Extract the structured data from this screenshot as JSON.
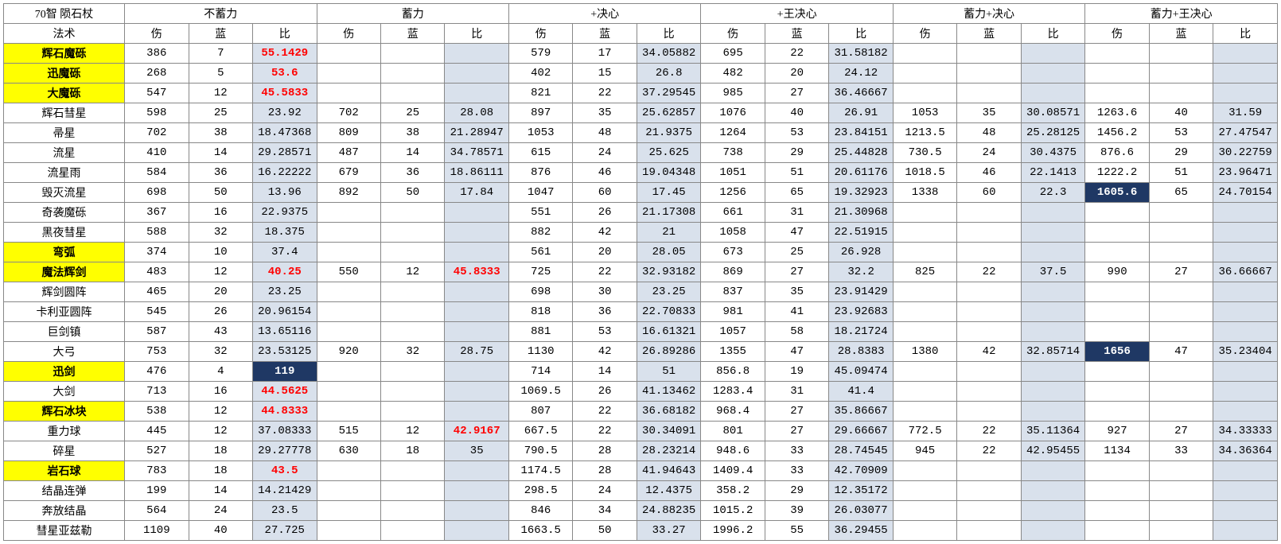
{
  "title": "70智 陨石杖",
  "groups": [
    "不蓄力",
    "蓄力",
    "+决心",
    "+王决心",
    "蓄力+决心",
    "蓄力+王决心"
  ],
  "subheaders": [
    "伤",
    "蓝",
    "比"
  ],
  "spellHeader": "法术",
  "spells": [
    {
      "name": "辉石魔砾",
      "yellow": true,
      "g": [
        {
          "d": 386,
          "m": 7,
          "r": 55.1429,
          "rRed": true
        },
        {
          "d": null,
          "m": null,
          "r": null
        },
        {
          "d": 579,
          "m": 17,
          "r": 34.05882
        },
        {
          "d": 695,
          "m": 22,
          "r": 31.58182
        },
        {
          "d": null,
          "m": null,
          "r": null
        },
        {
          "d": null,
          "m": null,
          "r": null
        }
      ]
    },
    {
      "name": "迅魔砾",
      "yellow": true,
      "g": [
        {
          "d": 268,
          "m": 5,
          "r": 53.6,
          "rRed": true
        },
        {
          "d": null,
          "m": null,
          "r": null
        },
        {
          "d": 402,
          "m": 15,
          "r": 26.8
        },
        {
          "d": 482,
          "m": 20,
          "r": 24.12
        },
        {
          "d": null,
          "m": null,
          "r": null
        },
        {
          "d": null,
          "m": null,
          "r": null
        }
      ]
    },
    {
      "name": "大魔砾",
      "yellow": true,
      "g": [
        {
          "d": 547,
          "m": 12,
          "r": 45.5833,
          "rRed": true
        },
        {
          "d": null,
          "m": null,
          "r": null
        },
        {
          "d": 821,
          "m": 22,
          "r": 37.29545
        },
        {
          "d": 985,
          "m": 27,
          "r": 36.46667
        },
        {
          "d": null,
          "m": null,
          "r": null
        },
        {
          "d": null,
          "m": null,
          "r": null
        }
      ]
    },
    {
      "name": "辉石彗星",
      "g": [
        {
          "d": 598,
          "m": 25,
          "r": 23.92
        },
        {
          "d": 702,
          "m": 25,
          "r": 28.08
        },
        {
          "d": 897,
          "m": 35,
          "r": 25.62857
        },
        {
          "d": 1076,
          "m": 40,
          "r": 26.91
        },
        {
          "d": 1053,
          "m": 35,
          "r": 30.08571
        },
        {
          "d": 1263.6,
          "m": 40,
          "r": 31.59
        }
      ]
    },
    {
      "name": "帚星",
      "g": [
        {
          "d": 702,
          "m": 38,
          "r": 18.47368
        },
        {
          "d": 809,
          "m": 38,
          "r": 21.28947
        },
        {
          "d": 1053,
          "m": 48,
          "r": 21.9375
        },
        {
          "d": 1264,
          "m": 53,
          "r": 23.84151
        },
        {
          "d": 1213.5,
          "m": 48,
          "r": 25.28125
        },
        {
          "d": 1456.2,
          "m": 53,
          "r": 27.47547
        }
      ]
    },
    {
      "name": "流星",
      "g": [
        {
          "d": 410,
          "m": 14,
          "r": 29.28571
        },
        {
          "d": 487,
          "m": 14,
          "r": 34.78571
        },
        {
          "d": 615,
          "m": 24,
          "r": 25.625
        },
        {
          "d": 738,
          "m": 29,
          "r": 25.44828
        },
        {
          "d": 730.5,
          "m": 24,
          "r": 30.4375
        },
        {
          "d": 876.6,
          "m": 29,
          "r": 30.22759
        }
      ]
    },
    {
      "name": "流星雨",
      "g": [
        {
          "d": 584,
          "m": 36,
          "r": 16.22222
        },
        {
          "d": 679,
          "m": 36,
          "r": 18.86111
        },
        {
          "d": 876,
          "m": 46,
          "r": 19.04348
        },
        {
          "d": 1051,
          "m": 51,
          "r": 20.61176
        },
        {
          "d": 1018.5,
          "m": 46,
          "r": 22.1413
        },
        {
          "d": 1222.2,
          "m": 51,
          "r": 23.96471
        }
      ]
    },
    {
      "name": "毁灭流星",
      "g": [
        {
          "d": 698,
          "m": 50,
          "r": 13.96
        },
        {
          "d": 892,
          "m": 50,
          "r": 17.84
        },
        {
          "d": 1047,
          "m": 60,
          "r": 17.45
        },
        {
          "d": 1256,
          "m": 65,
          "r": 19.32923
        },
        {
          "d": 1338,
          "m": 60,
          "r": 22.3
        },
        {
          "d": 1605.6,
          "dNavy": true,
          "m": 65,
          "r": 24.70154
        }
      ]
    },
    {
      "name": "奇袭魔砾",
      "g": [
        {
          "d": 367,
          "m": 16,
          "r": 22.9375
        },
        {
          "d": null,
          "m": null,
          "r": null
        },
        {
          "d": 551,
          "m": 26,
          "r": 21.17308
        },
        {
          "d": 661,
          "m": 31,
          "r": 21.30968
        },
        {
          "d": null,
          "m": null,
          "r": null
        },
        {
          "d": null,
          "m": null,
          "r": null
        }
      ]
    },
    {
      "name": "黑夜彗星",
      "g": [
        {
          "d": 588,
          "m": 32,
          "r": 18.375
        },
        {
          "d": null,
          "m": null,
          "r": null
        },
        {
          "d": 882,
          "m": 42,
          "r": 21
        },
        {
          "d": 1058,
          "m": 47,
          "r": 22.51915
        },
        {
          "d": null,
          "m": null,
          "r": null
        },
        {
          "d": null,
          "m": null,
          "r": null
        }
      ]
    },
    {
      "name": "弯弧",
      "yellow": true,
      "g": [
        {
          "d": 374,
          "m": 10,
          "r": 37.4
        },
        {
          "d": null,
          "m": null,
          "r": null
        },
        {
          "d": 561,
          "m": 20,
          "r": 28.05
        },
        {
          "d": 673,
          "m": 25,
          "r": 26.928
        },
        {
          "d": null,
          "m": null,
          "r": null
        },
        {
          "d": null,
          "m": null,
          "r": null
        }
      ]
    },
    {
      "name": "魔法辉剑",
      "yellow": true,
      "g": [
        {
          "d": 483,
          "m": 12,
          "r": 40.25,
          "rRed": true
        },
        {
          "d": 550,
          "m": 12,
          "r": 45.8333,
          "rRed": true
        },
        {
          "d": 725,
          "m": 22,
          "r": 32.93182
        },
        {
          "d": 869,
          "m": 27,
          "r": 32.2
        },
        {
          "d": 825,
          "m": 22,
          "r": 37.5
        },
        {
          "d": 990,
          "m": 27,
          "r": 36.66667
        }
      ]
    },
    {
      "name": "辉剑圆阵",
      "g": [
        {
          "d": 465,
          "m": 20,
          "r": 23.25
        },
        {
          "d": null,
          "m": null,
          "r": null
        },
        {
          "d": 698,
          "m": 30,
          "r": 23.25
        },
        {
          "d": 837,
          "m": 35,
          "r": 23.91429
        },
        {
          "d": null,
          "m": null,
          "r": null
        },
        {
          "d": null,
          "m": null,
          "r": null
        }
      ]
    },
    {
      "name": "卡利亚圆阵",
      "g": [
        {
          "d": 545,
          "m": 26,
          "r": 20.96154
        },
        {
          "d": null,
          "m": null,
          "r": null
        },
        {
          "d": 818,
          "m": 36,
          "r": 22.70833
        },
        {
          "d": 981,
          "m": 41,
          "r": 23.92683
        },
        {
          "d": null,
          "m": null,
          "r": null
        },
        {
          "d": null,
          "m": null,
          "r": null
        }
      ]
    },
    {
      "name": "巨剑镇",
      "g": [
        {
          "d": 587,
          "m": 43,
          "r": 13.65116
        },
        {
          "d": null,
          "m": null,
          "r": null
        },
        {
          "d": 881,
          "m": 53,
          "r": 16.61321
        },
        {
          "d": 1057,
          "m": 58,
          "r": 18.21724
        },
        {
          "d": null,
          "m": null,
          "r": null
        },
        {
          "d": null,
          "m": null,
          "r": null
        }
      ]
    },
    {
      "name": "大弓",
      "g": [
        {
          "d": 753,
          "m": 32,
          "r": 23.53125
        },
        {
          "d": 920,
          "m": 32,
          "r": 28.75
        },
        {
          "d": 1130,
          "m": 42,
          "r": 26.89286
        },
        {
          "d": 1355,
          "m": 47,
          "r": 28.8383
        },
        {
          "d": 1380,
          "m": 42,
          "r": 32.85714
        },
        {
          "d": 1656,
          "dNavy": true,
          "m": 47,
          "r": 35.23404
        }
      ]
    },
    {
      "name": "迅剑",
      "yellow": true,
      "g": [
        {
          "d": 476,
          "m": 4,
          "r": 119,
          "rNavy": true
        },
        {
          "d": null,
          "m": null,
          "r": null
        },
        {
          "d": 714,
          "m": 14,
          "r": 51
        },
        {
          "d": 856.8,
          "m": 19,
          "r": 45.09474
        },
        {
          "d": null,
          "m": null,
          "r": null
        },
        {
          "d": null,
          "m": null,
          "r": null
        }
      ]
    },
    {
      "name": "大剑",
      "g": [
        {
          "d": 713,
          "m": 16,
          "r": 44.5625,
          "rRed": true
        },
        {
          "d": null,
          "m": null,
          "r": null
        },
        {
          "d": 1069.5,
          "m": 26,
          "r": 41.13462
        },
        {
          "d": 1283.4,
          "m": 31,
          "r": 41.4
        },
        {
          "d": null,
          "m": null,
          "r": null
        },
        {
          "d": null,
          "m": null,
          "r": null
        }
      ]
    },
    {
      "name": "辉石冰块",
      "yellow": true,
      "g": [
        {
          "d": 538,
          "m": 12,
          "r": 44.8333,
          "rRed": true
        },
        {
          "d": null,
          "m": null,
          "r": null
        },
        {
          "d": 807,
          "m": 22,
          "r": 36.68182
        },
        {
          "d": 968.4,
          "m": 27,
          "r": 35.86667
        },
        {
          "d": null,
          "m": null,
          "r": null
        },
        {
          "d": null,
          "m": null,
          "r": null
        }
      ]
    },
    {
      "name": "重力球",
      "g": [
        {
          "d": 445,
          "m": 12,
          "r": 37.08333
        },
        {
          "d": 515,
          "m": 12,
          "r": 42.9167,
          "rRed": true
        },
        {
          "d": 667.5,
          "m": 22,
          "r": 30.34091
        },
        {
          "d": 801,
          "m": 27,
          "r": 29.66667
        },
        {
          "d": 772.5,
          "m": 22,
          "r": 35.11364
        },
        {
          "d": 927,
          "m": 27,
          "r": 34.33333
        }
      ]
    },
    {
      "name": "碎星",
      "g": [
        {
          "d": 527,
          "m": 18,
          "r": 29.27778
        },
        {
          "d": 630,
          "m": 18,
          "r": 35
        },
        {
          "d": 790.5,
          "m": 28,
          "r": 28.23214
        },
        {
          "d": 948.6,
          "m": 33,
          "r": 28.74545
        },
        {
          "d": 945,
          "m": 22,
          "r": 42.95455
        },
        {
          "d": 1134,
          "m": 33,
          "r": 34.36364
        }
      ]
    },
    {
      "name": "岩石球",
      "yellow": true,
      "g": [
        {
          "d": 783,
          "m": 18,
          "r": 43.5,
          "rRed": true
        },
        {
          "d": null,
          "m": null,
          "r": null
        },
        {
          "d": 1174.5,
          "m": 28,
          "r": 41.94643
        },
        {
          "d": 1409.4,
          "m": 33,
          "r": 42.70909
        },
        {
          "d": null,
          "m": null,
          "r": null
        },
        {
          "d": null,
          "m": null,
          "r": null
        }
      ]
    },
    {
      "name": "结晶连弹",
      "g": [
        {
          "d": 199,
          "m": 14,
          "r": 14.21429
        },
        {
          "d": null,
          "m": null,
          "r": null
        },
        {
          "d": 298.5,
          "m": 24,
          "r": 12.4375
        },
        {
          "d": 358.2,
          "m": 29,
          "r": 12.35172
        },
        {
          "d": null,
          "m": null,
          "r": null
        },
        {
          "d": null,
          "m": null,
          "r": null
        }
      ]
    },
    {
      "name": "奔放结晶",
      "g": [
        {
          "d": 564,
          "m": 24,
          "r": 23.5
        },
        {
          "d": null,
          "m": null,
          "r": null
        },
        {
          "d": 846,
          "m": 34,
          "r": 24.88235
        },
        {
          "d": 1015.2,
          "m": 39,
          "r": 26.03077
        },
        {
          "d": null,
          "m": null,
          "r": null
        },
        {
          "d": null,
          "m": null,
          "r": null
        }
      ]
    },
    {
      "name": "彗星亚兹勒",
      "g": [
        {
          "d": 1109,
          "m": 40,
          "r": 27.725
        },
        {
          "d": null,
          "m": null,
          "r": null
        },
        {
          "d": 1663.5,
          "m": 50,
          "r": 33.27
        },
        {
          "d": 1996.2,
          "m": 55,
          "r": 36.29455
        },
        {
          "d": null,
          "m": null,
          "r": null
        },
        {
          "d": null,
          "m": null,
          "r": null
        }
      ]
    }
  ]
}
